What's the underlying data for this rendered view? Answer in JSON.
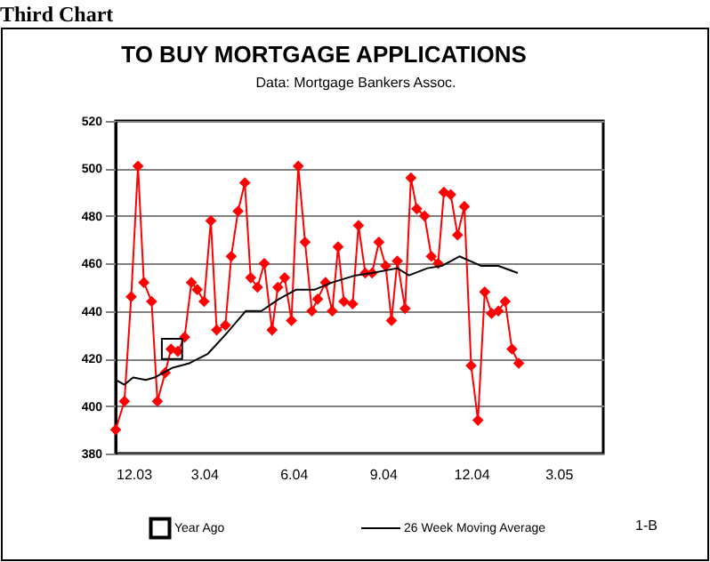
{
  "chart_data": {
    "type": "line",
    "title": "TO BUY MORTGAGE APPLICATIONS",
    "subtitle": "Data: Mortgage Bankers Assoc.",
    "annotations": [
      "Third Chart",
      "1-B"
    ],
    "x": [
      "2003-12-01",
      "2003-12-10",
      "2003-12-17",
      "2003-12-24",
      "2003-12-30",
      "2004-01-07",
      "2004-01-13",
      "2004-01-21",
      "2004-01-27",
      "2004-02-03",
      "2004-02-10",
      "2004-02-17",
      "2004-02-23",
      "2004-03-01",
      "2004-03-08",
      "2004-03-14",
      "2004-03-23",
      "2004-03-29",
      "2004-04-05",
      "2004-04-12",
      "2004-04-18",
      "2004-04-25",
      "2004-05-02",
      "2004-05-10",
      "2004-05-16",
      "2004-05-23",
      "2004-05-30",
      "2004-06-06",
      "2004-06-13",
      "2004-06-20",
      "2004-06-26",
      "2004-07-04",
      "2004-07-11",
      "2004-07-17",
      "2004-07-23",
      "2004-08-01",
      "2004-08-07",
      "2004-08-14",
      "2004-08-21",
      "2004-08-28",
      "2004-09-04",
      "2004-09-10",
      "2004-09-16",
      "2004-09-24",
      "2004-09-30",
      "2004-10-06",
      "2004-10-14",
      "2004-10-21",
      "2004-10-28",
      "2004-11-03",
      "2004-11-10",
      "2004-11-17",
      "2004-11-24",
      "2004-12-01",
      "2004-12-08",
      "2004-12-15",
      "2004-12-22",
      "2004-12-29",
      "2005-01-05",
      "2005-01-12",
      "2005-01-19"
    ],
    "series": [
      {
        "color": "#ff0000",
        "marker": "diamond",
        "values": [
          390,
          402,
          446,
          501,
          452,
          444,
          402,
          414,
          424,
          423,
          429,
          452,
          449,
          444,
          478,
          432,
          434,
          463,
          482,
          494,
          454,
          450,
          460,
          432,
          450,
          454,
          436,
          501,
          469,
          440,
          445,
          452,
          440,
          467,
          444,
          443,
          476,
          456,
          456,
          469,
          459,
          436,
          461,
          441,
          496,
          483,
          480,
          463,
          460,
          490,
          489,
          472,
          484,
          417,
          394,
          448,
          439,
          440,
          444,
          424,
          418
        ]
      },
      {
        "type": "line",
        "name": "26 Week Moving Average",
        "color": "#000000",
        "marker": "none",
        "x": [
          "2003-12-01",
          "2003-12-10",
          "2003-12-19",
          "2004-01-01",
          "2004-01-10",
          "2004-01-28",
          "2004-02-15",
          "2004-03-05",
          "2004-03-23",
          "2004-04-13",
          "2004-04-29",
          "2004-05-17",
          "2004-06-04",
          "2004-06-23",
          "2004-07-11",
          "2004-08-04",
          "2004-08-21",
          "2004-09-16",
          "2004-09-28",
          "2004-10-17",
          "2004-11-01",
          "2004-11-19",
          "2004-12-11",
          "2004-12-29",
          "2005-01-18"
        ],
        "values": [
          411,
          409,
          412,
          411,
          412,
          416,
          418,
          422,
          430,
          440,
          440,
          445,
          449,
          449,
          452,
          455,
          456,
          458,
          455,
          458,
          459,
          463,
          459,
          459,
          456
        ]
      },
      {
        "type": "scatter",
        "name": "Year Ago",
        "color": "#000000",
        "marker": "square",
        "x": [
          "2004-01-28"
        ],
        "values": [
          424
        ]
      }
    ],
    "xlim": [
      "2003-12-01",
      "2005-04-16"
    ],
    "xticks": [
      {
        "value": "2003-12",
        "label": "12.03"
      },
      {
        "value": "2004-03",
        "label": "3.04"
      },
      {
        "value": "2004-06",
        "label": "6.04"
      },
      {
        "value": "2004-09",
        "label": "9.04"
      },
      {
        "value": "2004-12",
        "label": "12.04"
      },
      {
        "value": "2005-03",
        "label": "3.05"
      }
    ],
    "ylim": [
      380,
      520
    ],
    "yticks": [
      380,
      400,
      420,
      440,
      460,
      480,
      500,
      520
    ],
    "grid": "y",
    "legend": "bottom"
  }
}
